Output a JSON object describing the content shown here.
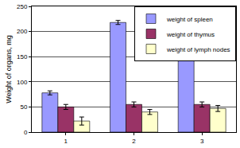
{
  "chart_data": {
    "type": "bar",
    "y_label": "Weight of organs, mg",
    "categories": [
      "1",
      "2",
      "3"
    ],
    "series": [
      {
        "name": "weight of spleen",
        "color": "#9999ff",
        "values": [
          78,
          218,
          153
        ],
        "errors": [
          4,
          4,
          4
        ]
      },
      {
        "name": "weight of thymus",
        "color": "#993366",
        "values": [
          50,
          55,
          55
        ],
        "errors": [
          5,
          5,
          5
        ]
      },
      {
        "name": "weight of lymph nodes",
        "color": "#ffffcc",
        "values": [
          22,
          40,
          47
        ],
        "errors": [
          8,
          5,
          6
        ]
      }
    ],
    "ylim": [
      0,
      250
    ],
    "yticks": [
      0,
      50,
      100,
      150,
      200,
      250
    ],
    "grid": true,
    "legend": "top-right"
  }
}
